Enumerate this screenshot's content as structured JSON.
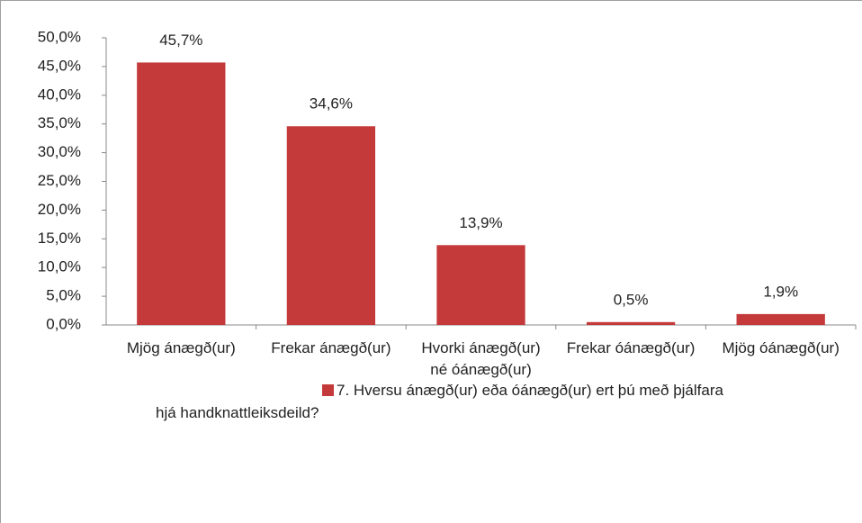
{
  "chart_data": {
    "type": "bar",
    "categories": [
      "Mjög ánægð(ur)",
      "Frekar ánægð(ur)",
      "Hvorki ánægð(ur) né óánægð(ur)",
      "Frekar óánægð(ur)",
      "Mjög óánægð(ur)"
    ],
    "series": [
      {
        "name": "7. Hversu ánægð(ur) eða óánægð(ur) ert þú með þjálfara hjá handknattleiksdeild?",
        "color": "#c43a3a",
        "values": [
          45.7,
          34.6,
          13.9,
          0.5,
          1.9
        ],
        "value_labels": [
          "45,7%",
          "34,6%",
          "13,9%",
          "0,5%",
          "1,9%"
        ]
      }
    ],
    "ylim": [
      0,
      50
    ],
    "yticks": [
      {
        "value": 0,
        "label": "0,0%"
      },
      {
        "value": 5,
        "label": "5,0%"
      },
      {
        "value": 10,
        "label": "10,0%"
      },
      {
        "value": 15,
        "label": "15,0%"
      },
      {
        "value": 20,
        "label": "20,0%"
      },
      {
        "value": 25,
        "label": "25,0%"
      },
      {
        "value": 30,
        "label": "30,0%"
      },
      {
        "value": 35,
        "label": "35,0%"
      },
      {
        "value": 40,
        "label": "40,0%"
      },
      {
        "value": 45,
        "label": "45,0%"
      },
      {
        "value": 50,
        "label": "50,0%"
      }
    ],
    "grid": false,
    "legend": "bottom"
  }
}
